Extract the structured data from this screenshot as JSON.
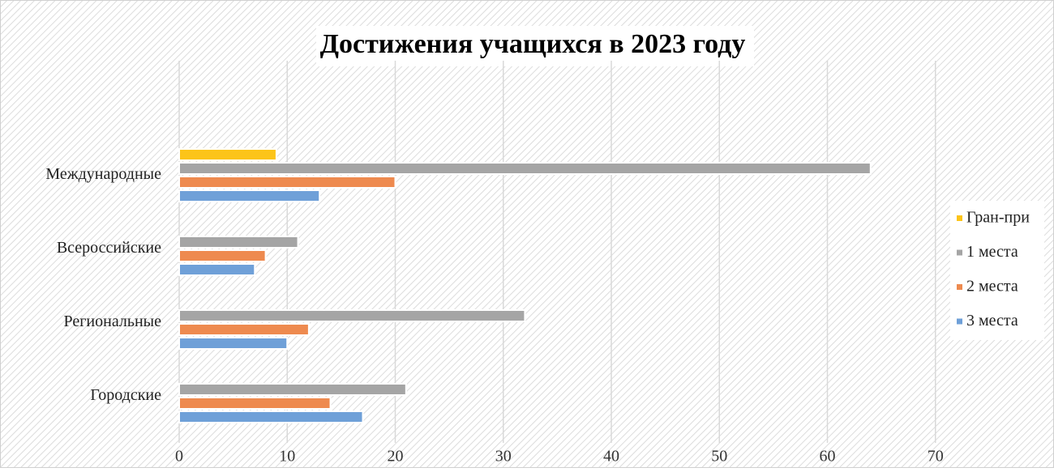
{
  "chart_data": {
    "type": "bar",
    "orientation": "horizontal",
    "title": "Достижения учащихся в 2023 году",
    "categories": [
      "Городские",
      "Региональные",
      "Всероссийские",
      "Международные"
    ],
    "series": [
      {
        "name": "3 места",
        "color": "#6fa0d8",
        "values": [
          17,
          10,
          7,
          13
        ]
      },
      {
        "name": "2 места",
        "color": "#ee8a4f",
        "values": [
          14,
          12,
          8,
          20
        ]
      },
      {
        "name": "1 места",
        "color": "#a5a5a5",
        "values": [
          21,
          32,
          11,
          64
        ]
      },
      {
        "name": "Гран-при",
        "color": "#fcc419",
        "values": [
          0,
          0,
          0,
          9
        ]
      }
    ],
    "xlim": [
      0,
      80
    ],
    "xticks": [
      0,
      10,
      20,
      30,
      40,
      50,
      60,
      70
    ],
    "grid": true,
    "legend": "right"
  }
}
